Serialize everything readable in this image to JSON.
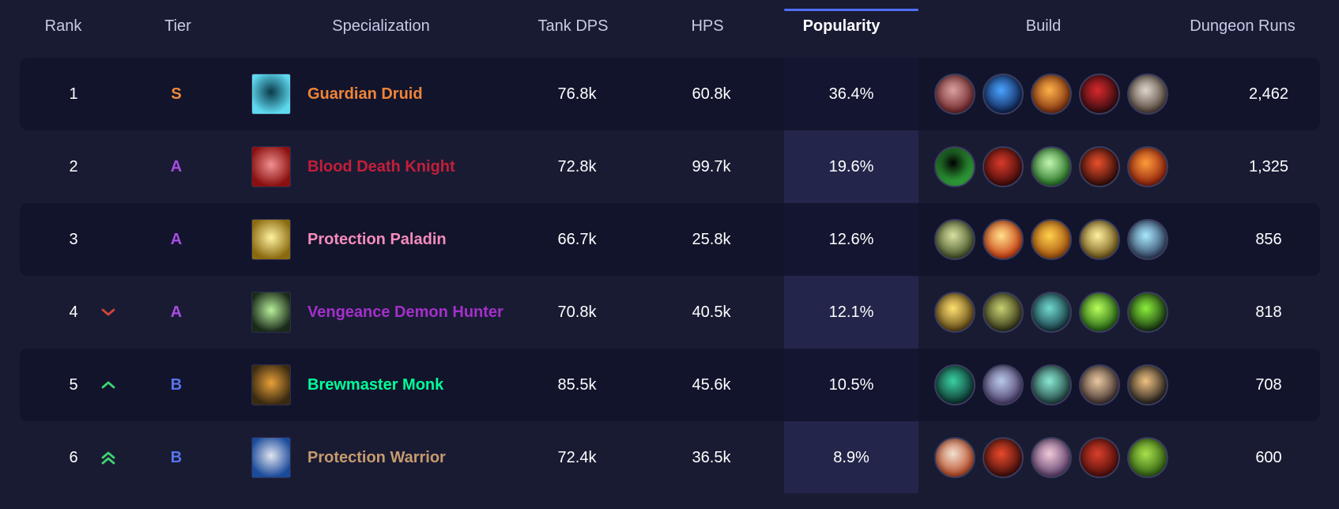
{
  "header": {
    "rank": "Rank",
    "tier": "Tier",
    "specialization": "Specialization",
    "tank_dps": "Tank DPS",
    "hps": "HPS",
    "popularity": "Popularity",
    "build": "Build",
    "dungeon_runs": "Dungeon Runs",
    "sorted_by": "Popularity"
  },
  "tier_colors": {
    "S": "#f08a3c",
    "A": "#a94ee3",
    "B": "#5775ef"
  },
  "trend_colors": {
    "down": "#d0433a",
    "up": "#3fd170"
  },
  "rows": [
    {
      "rank": "1",
      "trend": null,
      "tier": "S",
      "spec": "Guardian Druid",
      "spec_color": "#f08436",
      "spec_icon": "guardian-druid-icon",
      "spec_icon_colors": [
        "#0a3a4a",
        "#5fd8ef"
      ],
      "tank_dps": "76.8k",
      "hps": "60.8k",
      "popularity": "36.4%",
      "runs": "2,462",
      "build": [
        {
          "name": "talent-icon-1",
          "colors": [
            "#d9a0a0",
            "#6b1f22"
          ]
        },
        {
          "name": "talent-icon-2",
          "colors": [
            "#4aa3ff",
            "#0b1d4a"
          ]
        },
        {
          "name": "talent-icon-3",
          "colors": [
            "#ffb14a",
            "#7a2a0a"
          ]
        },
        {
          "name": "talent-icon-4",
          "colors": [
            "#d8282a",
            "#2a0a10"
          ]
        },
        {
          "name": "talent-icon-5",
          "colors": [
            "#ddd6cc",
            "#4a3a30"
          ]
        }
      ]
    },
    {
      "rank": "2",
      "trend": null,
      "tier": "A",
      "spec": "Blood Death Knight",
      "spec_color": "#c41e3a",
      "spec_icon": "blood-death-knight-icon",
      "spec_icon_colors": [
        "#f09090",
        "#8a1010"
      ],
      "tank_dps": "72.8k",
      "hps": "99.7k",
      "popularity": "19.6%",
      "runs": "1,325",
      "build": [
        {
          "name": "talent-icon-1",
          "colors": [
            "#000000",
            "#3ecf4a"
          ]
        },
        {
          "name": "talent-icon-2",
          "colors": [
            "#d83a2a",
            "#3a0808"
          ]
        },
        {
          "name": "talent-icon-3",
          "colors": [
            "#c2f5b0",
            "#1a6a1a"
          ]
        },
        {
          "name": "talent-icon-4",
          "colors": [
            "#e8502a",
            "#2a0808"
          ]
        },
        {
          "name": "talent-icon-5",
          "colors": [
            "#ff9a3a",
            "#8a1a0a"
          ]
        }
      ]
    },
    {
      "rank": "3",
      "trend": null,
      "tier": "A",
      "spec": "Protection Paladin",
      "spec_color": "#f48cba",
      "spec_icon": "protection-paladin-icon",
      "spec_icon_colors": [
        "#fff2a0",
        "#8a6a10"
      ],
      "tank_dps": "66.7k",
      "hps": "25.8k",
      "popularity": "12.6%",
      "runs": "856",
      "build": [
        {
          "name": "talent-icon-1",
          "colors": [
            "#d8e0a0",
            "#3a4a20"
          ]
        },
        {
          "name": "talent-icon-2",
          "colors": [
            "#ffe08a",
            "#c8340a"
          ]
        },
        {
          "name": "talent-icon-3",
          "colors": [
            "#ffd04a",
            "#a04a0a"
          ]
        },
        {
          "name": "talent-icon-4",
          "colors": [
            "#fff0a0",
            "#6a5010"
          ]
        },
        {
          "name": "talent-icon-5",
          "colors": [
            "#a8e8ff",
            "#2a3a5a"
          ]
        }
      ]
    },
    {
      "rank": "4",
      "trend": "down",
      "tier": "A",
      "spec": "Vengeance Demon Hunter",
      "spec_color": "#a330c9",
      "spec_icon": "vengeance-demon-hunter-icon",
      "spec_icon_colors": [
        "#b8f09a",
        "#1a2a1a"
      ],
      "tank_dps": "70.8k",
      "hps": "40.5k",
      "popularity": "12.1%",
      "runs": "818",
      "build": [
        {
          "name": "talent-icon-1",
          "colors": [
            "#ffe070",
            "#5a4010"
          ]
        },
        {
          "name": "talent-icon-2",
          "colors": [
            "#c8d070",
            "#2a2a10"
          ]
        },
        {
          "name": "talent-icon-3",
          "colors": [
            "#70d8d0",
            "#10303a"
          ]
        },
        {
          "name": "talent-icon-4",
          "colors": [
            "#b8ff5a",
            "#1a5a10"
          ]
        },
        {
          "name": "talent-icon-5",
          "colors": [
            "#8aef3a",
            "#102a10"
          ]
        }
      ]
    },
    {
      "rank": "5",
      "trend": "up",
      "tier": "B",
      "spec": "Brewmaster Monk",
      "spec_color": "#00ff98",
      "spec_icon": "brewmaster-monk-icon",
      "spec_icon_colors": [
        "#e8a03a",
        "#3a2a10"
      ],
      "tank_dps": "85.5k",
      "hps": "45.6k",
      "popularity": "10.5%",
      "runs": "708",
      "build": [
        {
          "name": "talent-icon-1",
          "colors": [
            "#3ad0a0",
            "#0a2a2a"
          ]
        },
        {
          "name": "talent-icon-2",
          "colors": [
            "#b8c8e8",
            "#4a3a6a"
          ]
        },
        {
          "name": "talent-icon-3",
          "colors": [
            "#8ae8d0",
            "#1a3a3a"
          ]
        },
        {
          "name": "talent-icon-4",
          "colors": [
            "#e8c8a0",
            "#3a2a2a"
          ]
        },
        {
          "name": "talent-icon-5",
          "colors": [
            "#f0c080",
            "#1a1a1a"
          ]
        }
      ]
    },
    {
      "rank": "6",
      "trend": "up-double",
      "tier": "B",
      "spec": "Protection Warrior",
      "spec_color": "#c69b6d",
      "spec_icon": "protection-warrior-icon",
      "spec_icon_colors": [
        "#e0e4f0",
        "#1a4a9a"
      ],
      "tank_dps": "72.4k",
      "hps": "36.5k",
      "popularity": "8.9%",
      "runs": "600",
      "build": [
        {
          "name": "talent-icon-1",
          "colors": [
            "#f0e0d0",
            "#b8401a"
          ]
        },
        {
          "name": "talent-icon-2",
          "colors": [
            "#e84a2a",
            "#3a0a0a"
          ]
        },
        {
          "name": "talent-icon-3",
          "colors": [
            "#f0c8d8",
            "#5a3a6a"
          ]
        },
        {
          "name": "talent-icon-4",
          "colors": [
            "#d8402a",
            "#4a0a0a"
          ]
        },
        {
          "name": "talent-icon-5",
          "colors": [
            "#a8e04a",
            "#2a5a10"
          ]
        }
      ]
    }
  ]
}
